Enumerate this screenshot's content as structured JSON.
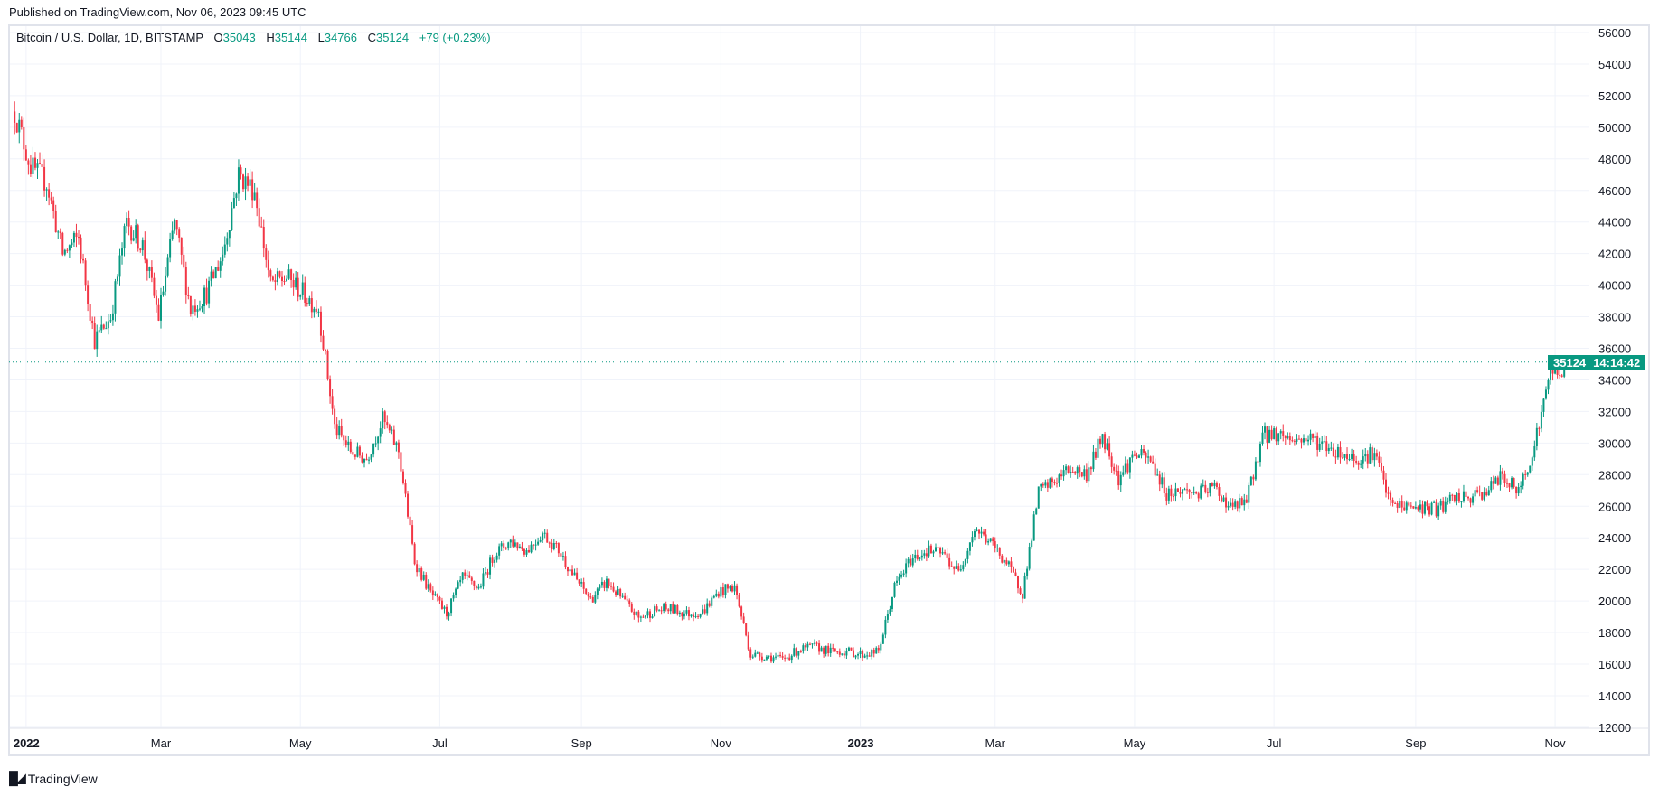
{
  "header": {
    "published": "Published on TradingView.com, Nov 06, 2023 09:45 UTC"
  },
  "legend": {
    "symbol": "Bitcoin / U.S. Dollar, 1D, BITSTAMP",
    "o_label": "O",
    "o": "35043",
    "h_label": "H",
    "h": "35144",
    "l_label": "L",
    "l": "34766",
    "c_label": "C",
    "c": "35124",
    "change": "+79 (+0.23%)"
  },
  "price_label": {
    "price": "35124",
    "countdown": "14:14:42"
  },
  "footer": {
    "brand": "TradingView",
    "logo_mark": "TV"
  },
  "colors": {
    "up": "#089981",
    "down": "#f23645",
    "grid": "#f0f3fa",
    "border": "#e0e3eb"
  },
  "chart_data": {
    "type": "candlestick",
    "title": "Bitcoin / U.S. Dollar, 1D, BITSTAMP",
    "interval": "1D",
    "start_date": "2021-12-27",
    "anchor_step_days": 7,
    "first_open": 51000,
    "weekly_anchor_closes": [
      47500,
      46500,
      42000,
      43000,
      36500,
      38000,
      44000,
      42500,
      38000,
      44000,
      38500,
      39500,
      42000,
      47000,
      46000,
      40000,
      40500,
      39500,
      38500,
      31000,
      29500,
      29000,
      31500,
      29500,
      22500,
      20500,
      19200,
      21500,
      20800,
      23000,
      23800,
      23200,
      24300,
      23200,
      21500,
      20100,
      21200,
      20100,
      18900,
      19400,
      19500,
      19200,
      19300,
      20600,
      20900,
      16600,
      16500,
      16300,
      16900,
      17100,
      16800,
      16800,
      16600,
      16800,
      20900,
      22600,
      23200,
      23000,
      21800,
      24600,
      23700,
      22400,
      20500,
      26900,
      27600,
      28400,
      28000,
      30500,
      27800,
      29300,
      28900,
      26800,
      27000,
      26800,
      27200,
      25900,
      26300,
      30500,
      30600,
      30200,
      30300,
      29800,
      29300,
      29000,
      29400,
      26100,
      26000,
      25900,
      25800,
      26500,
      26500,
      27000,
      27900,
      26900,
      29900,
      34500,
      34700,
      35124
    ],
    "last_candle": {
      "open": 35043,
      "high": 35144,
      "low": 34766,
      "close": 35124
    },
    "y_ticks": [
      12000,
      14000,
      16000,
      18000,
      20000,
      22000,
      24000,
      26000,
      28000,
      30000,
      32000,
      34000,
      36000,
      38000,
      40000,
      42000,
      44000,
      46000,
      48000,
      50000,
      52000,
      54000,
      56000
    ],
    "ylim": [
      12000,
      56000
    ],
    "x_ticks": [
      {
        "label": "2022",
        "date": "2022-01-01",
        "bold": true
      },
      {
        "label": "Mar",
        "date": "2022-03-01"
      },
      {
        "label": "May",
        "date": "2022-05-01"
      },
      {
        "label": "Jul",
        "date": "2022-07-01"
      },
      {
        "label": "Sep",
        "date": "2022-09-01"
      },
      {
        "label": "Nov",
        "date": "2022-11-01"
      },
      {
        "label": "2023",
        "date": "2023-01-01",
        "bold": true
      },
      {
        "label": "Mar",
        "date": "2023-03-01"
      },
      {
        "label": "May",
        "date": "2023-05-01"
      },
      {
        "label": "Jul",
        "date": "2023-07-01"
      },
      {
        "label": "Sep",
        "date": "2023-09-01"
      },
      {
        "label": "Nov",
        "date": "2023-11-01"
      }
    ],
    "grid": true
  }
}
